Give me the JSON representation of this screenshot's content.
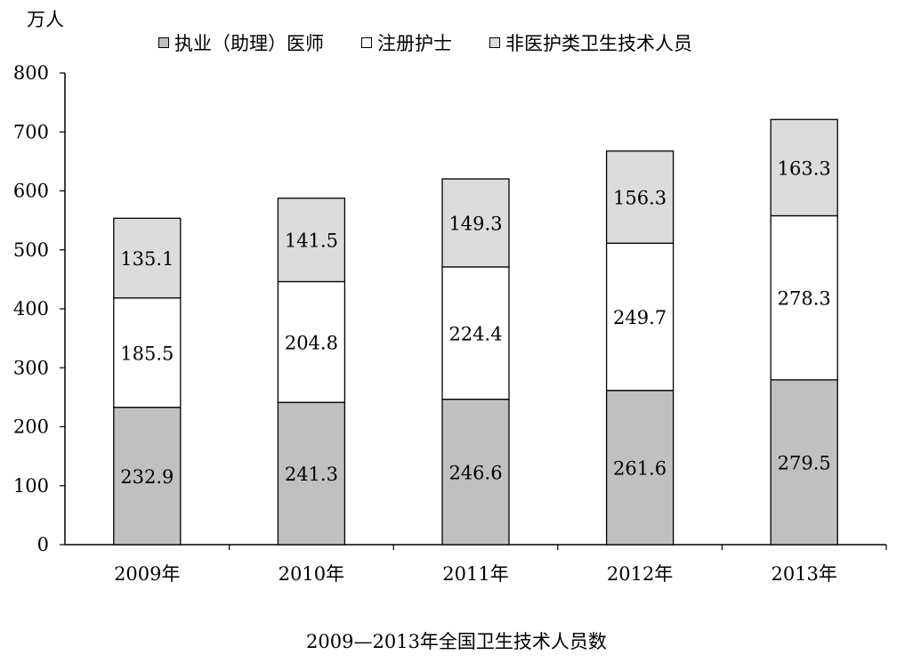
{
  "chart_data": {
    "type": "bar",
    "stacked": true,
    "title": "2009—2013年全国卫生技术人员数",
    "ylabel": "万人",
    "xlabel": "",
    "ylim": [
      0,
      800
    ],
    "yticks": [
      0,
      100,
      200,
      300,
      400,
      500,
      600,
      700,
      800
    ],
    "categories": [
      "2009年",
      "2010年",
      "2011年",
      "2012年",
      "2013年"
    ],
    "series": [
      {
        "name": "执业（助理）医师",
        "color": "#c0c0c0",
        "values": [
          232.9,
          241.3,
          246.6,
          261.6,
          279.5
        ]
      },
      {
        "name": "注册护士",
        "color": "#ffffff",
        "values": [
          185.5,
          204.8,
          224.4,
          249.7,
          278.3
        ]
      },
      {
        "name": "非医护类卫生技术人员",
        "color": "#dcdcdc",
        "values": [
          135.1,
          141.5,
          149.3,
          156.3,
          163.3
        ]
      }
    ],
    "legend_position": "top",
    "grid": false
  }
}
